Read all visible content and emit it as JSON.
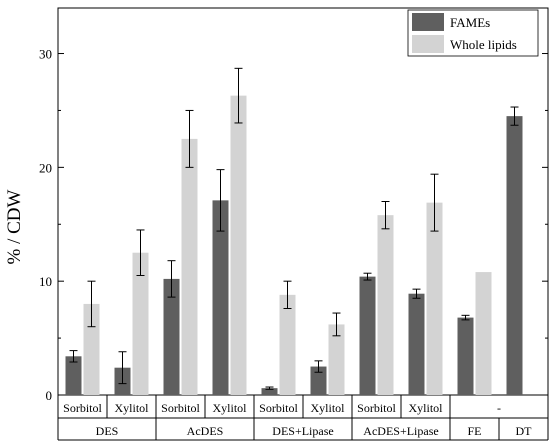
{
  "chart_data": {
    "type": "bar",
    "ylabel": "% / CDW",
    "xlabel": "",
    "ylim": [
      0,
      34
    ],
    "yticks": [
      0,
      10,
      20,
      30
    ],
    "legend": {
      "placement": "top-right",
      "entries": [
        "FAMEs",
        "Whole lipids"
      ]
    },
    "grid": false,
    "series": [
      {
        "name": "FAMEs",
        "color": "#5f5f5f"
      },
      {
        "name": "Whole lipids",
        "color": "#d3d3d3"
      }
    ],
    "groups": [
      {
        "label": "DES",
        "subgroups": [
          {
            "label": "Sorbitol",
            "fames": 3.4,
            "fames_err": 0.5,
            "lipids": 8.0,
            "lipids_err": 2.0
          },
          {
            "label": "Xylitol",
            "fames": 2.4,
            "fames_err": 1.4,
            "lipids": 12.5,
            "lipids_err": 2.0
          }
        ]
      },
      {
        "label": "AcDES",
        "subgroups": [
          {
            "label": "Sorbitol",
            "fames": 10.2,
            "fames_err": 1.6,
            "lipids": 22.5,
            "lipids_err": 2.5
          },
          {
            "label": "Xylitol",
            "fames": 17.1,
            "fames_err": 2.7,
            "lipids": 26.3,
            "lipids_err": 2.4
          }
        ]
      },
      {
        "label": "DES+Lipase",
        "subgroups": [
          {
            "label": "Sorbitol",
            "fames": 0.6,
            "fames_err": 0.1,
            "lipids": 8.8,
            "lipids_err": 1.2
          },
          {
            "label": "Xylitol",
            "fames": 2.5,
            "fames_err": 0.5,
            "lipids": 6.2,
            "lipids_err": 1.0
          }
        ]
      },
      {
        "label": "AcDES+Lipase",
        "subgroups": [
          {
            "label": "Sorbitol",
            "fames": 10.4,
            "fames_err": 0.3,
            "lipids": 15.8,
            "lipids_err": 1.2
          },
          {
            "label": "Xylitol",
            "fames": 8.9,
            "fames_err": 0.4,
            "lipids": 16.9,
            "lipids_err": 2.5
          }
        ]
      },
      {
        "label": "FE",
        "subgroups": [
          {
            "label": "",
            "fames": 6.8,
            "fames_err": 0.2,
            "lipids": 10.8,
            "lipids_err": null
          }
        ]
      },
      {
        "label": "DT",
        "subgroups": [
          {
            "label": "",
            "fames": 24.5,
            "fames_err": 0.8,
            "lipids": null,
            "lipids_err": null
          }
        ]
      }
    ],
    "shared_subgroup_label": "-"
  }
}
